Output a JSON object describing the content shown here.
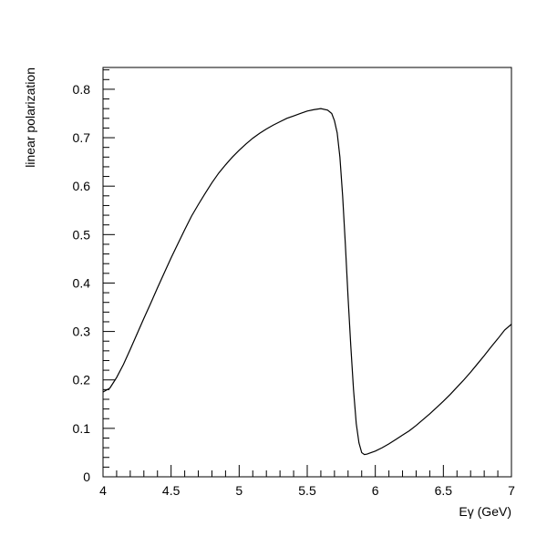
{
  "chart_data": {
    "type": "line",
    "xlabel": "Eγ (GeV)",
    "ylabel": "linear polarization",
    "xlim": [
      4,
      7
    ],
    "ylim": [
      0,
      0.845
    ],
    "xticks": [
      {
        "value": 4,
        "label": "4"
      },
      {
        "value": 4.5,
        "label": "4.5"
      },
      {
        "value": 5,
        "label": "5"
      },
      {
        "value": 5.5,
        "label": "5.5"
      },
      {
        "value": 6,
        "label": "6"
      },
      {
        "value": 6.5,
        "label": "6.5"
      },
      {
        "value": 7,
        "label": "7"
      }
    ],
    "yticks": [
      {
        "value": 0,
        "label": "0"
      },
      {
        "value": 0.1,
        "label": "0.1"
      },
      {
        "value": 0.2,
        "label": "0.2"
      },
      {
        "value": 0.3,
        "label": "0.3"
      },
      {
        "value": 0.4,
        "label": "0.4"
      },
      {
        "value": 0.5,
        "label": "0.5"
      },
      {
        "value": 0.6,
        "label": "0.6"
      },
      {
        "value": 0.7,
        "label": "0.7"
      },
      {
        "value": 0.8,
        "label": "0.8"
      }
    ],
    "x_minor_step": 0.1,
    "y_minor_step": 0.02,
    "grid": false,
    "series": [
      {
        "x": [
          4.0,
          4.05,
          4.1,
          4.15,
          4.2,
          4.25,
          4.3,
          4.35,
          4.4,
          4.45,
          4.5,
          4.55,
          4.6,
          4.65,
          4.7,
          4.75,
          4.8,
          4.85,
          4.9,
          4.95,
          5.0,
          5.05,
          5.1,
          5.15,
          5.2,
          5.25,
          5.3,
          5.35,
          5.4,
          5.45,
          5.5,
          5.55,
          5.6,
          5.65,
          5.68,
          5.7,
          5.72,
          5.74,
          5.76,
          5.78,
          5.8,
          5.82,
          5.84,
          5.86,
          5.88,
          5.9,
          5.92,
          5.94,
          5.96,
          6.0,
          6.05,
          6.1,
          6.15,
          6.2,
          6.25,
          6.3,
          6.35,
          6.4,
          6.45,
          6.5,
          6.55,
          6.6,
          6.65,
          6.7,
          6.75,
          6.8,
          6.85,
          6.9,
          6.95,
          7.0
        ],
        "y": [
          0.175,
          0.183,
          0.205,
          0.232,
          0.263,
          0.295,
          0.327,
          0.358,
          0.39,
          0.421,
          0.452,
          0.481,
          0.51,
          0.538,
          0.562,
          0.585,
          0.607,
          0.627,
          0.644,
          0.66,
          0.674,
          0.687,
          0.699,
          0.709,
          0.718,
          0.726,
          0.733,
          0.74,
          0.745,
          0.75,
          0.755,
          0.758,
          0.76,
          0.757,
          0.75,
          0.735,
          0.71,
          0.66,
          0.58,
          0.48,
          0.37,
          0.27,
          0.18,
          0.11,
          0.07,
          0.05,
          0.046,
          0.047,
          0.049,
          0.053,
          0.06,
          0.068,
          0.077,
          0.086,
          0.095,
          0.106,
          0.118,
          0.13,
          0.143,
          0.156,
          0.17,
          0.185,
          0.2,
          0.216,
          0.233,
          0.25,
          0.268,
          0.285,
          0.303,
          0.315
        ]
      }
    ]
  }
}
